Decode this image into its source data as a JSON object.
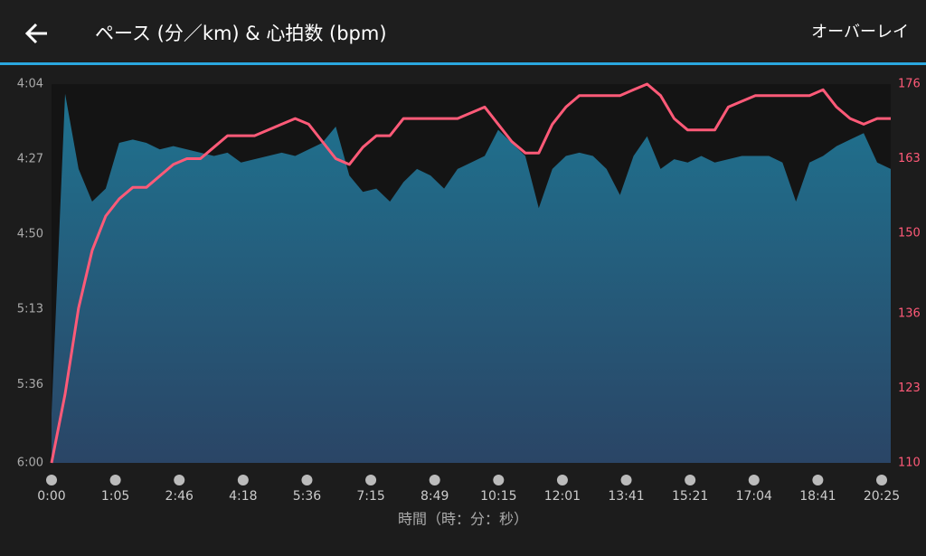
{
  "header": {
    "title": "ペース (分／km) & 心拍数 (bpm)",
    "action": "オーバーレイ"
  },
  "chart_data": {
    "type": "area_line",
    "xlabel": "時間（時：分：秒）",
    "xtick_labels": [
      "0:00",
      "1:05",
      "2:46",
      "4:18",
      "5:36",
      "7:15",
      "8:49",
      "10:15",
      "12:01",
      "13:41",
      "15:21",
      "17:04",
      "18:41",
      "20:25"
    ],
    "ylim": [
      360,
      244
    ],
    "yticks": [
      {
        "value": 244,
        "label": "4:04"
      },
      {
        "value": 267,
        "label": "4:27"
      },
      {
        "value": 290,
        "label": "4:50"
      },
      {
        "value": 313,
        "label": "5:13"
      },
      {
        "value": 336,
        "label": "5:36"
      },
      {
        "value": 360,
        "label": "6:00"
      }
    ],
    "y2lim": [
      110,
      176
    ],
    "y2ticks": [
      110,
      123,
      136,
      150,
      163,
      176
    ],
    "series": [
      {
        "name": "ペース",
        "color": "#1f7390",
        "values": [
          345,
          247,
          270,
          280,
          276,
          262,
          261,
          262,
          264,
          263,
          264,
          265,
          266,
          265,
          268,
          267,
          266,
          265,
          266,
          264,
          262,
          257,
          272,
          277,
          276,
          280,
          274,
          270,
          272,
          276,
          270,
          268,
          266,
          258,
          262,
          266,
          282,
          270,
          266,
          265,
          266,
          270,
          278,
          266,
          260,
          270,
          267,
          268,
          266,
          268,
          267,
          266,
          266,
          266,
          268,
          280,
          268,
          266,
          263,
          261,
          259,
          268,
          270
        ]
      },
      {
        "name": "心拍数",
        "color": "#ff5a78",
        "axis": "y2",
        "values": [
          110,
          122,
          137,
          147,
          153,
          156,
          158,
          158,
          160,
          162,
          163,
          163,
          165,
          167,
          167,
          167,
          168,
          169,
          170,
          169,
          166,
          163,
          162,
          165,
          167,
          167,
          170,
          170,
          170,
          170,
          170,
          171,
          172,
          169,
          166,
          164,
          164,
          169,
          172,
          174,
          174,
          174,
          174,
          175,
          176,
          174,
          170,
          168,
          168,
          168,
          172,
          173,
          174,
          174,
          174,
          174,
          174,
          175,
          172,
          170,
          169,
          170,
          170
        ]
      }
    ]
  }
}
